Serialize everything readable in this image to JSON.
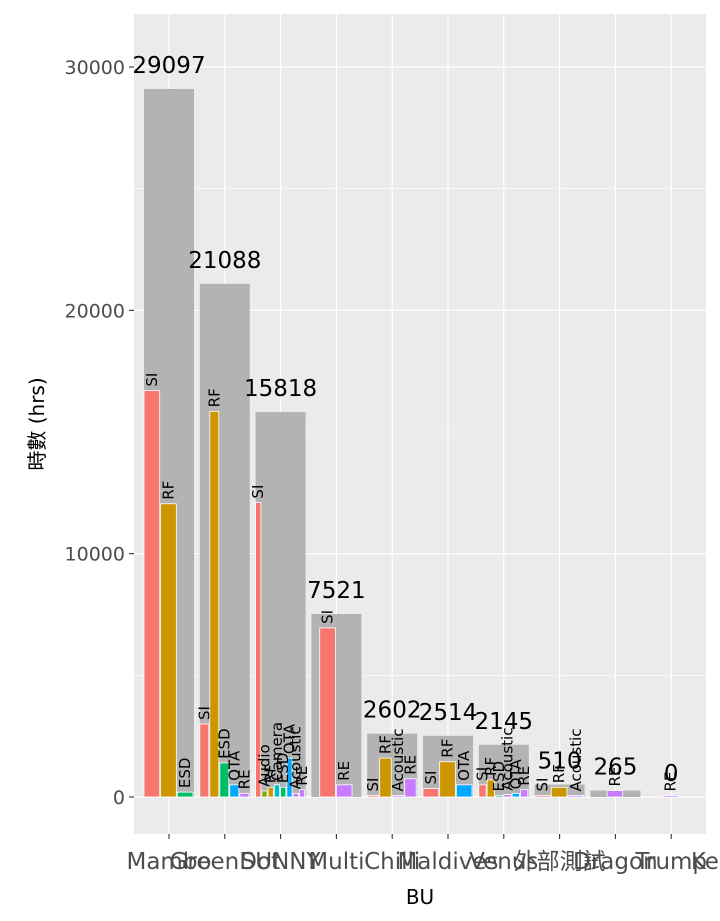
{
  "chart_data": {
    "type": "bar",
    "xlabel": "BU",
    "ylabel": "時數 (hrs)",
    "ylim": [
      -1500,
      32000
    ],
    "yticks": [
      0,
      10000,
      20000,
      30000
    ],
    "grid": true,
    "legend": "none",
    "colors": {
      "total": "#b3b3b3",
      "panel": "#ebebeb",
      "gridline": "#ffffff",
      "SI": "#f8766d",
      "RF": "#cd9600",
      "ESD": "#00be67",
      "OTA": "#00a9ff",
      "RE": "#c77cff",
      "Audio": "#7cae00",
      "Acoustic": "#c77cff",
      "Camera": "#00bfc4"
    },
    "categories": [
      "Mambo",
      "GreenDot",
      "SUNNY",
      "Multi",
      "Chilli",
      "Maldives",
      "Venus",
      "外部測試",
      "Dragon",
      "Trump",
      "Kernel"
    ],
    "totals": [
      29097,
      21088,
      15818,
      7521,
      2602,
      2514,
      2145,
      510,
      265,
      0,
      0
    ],
    "total_labels": [
      "29097",
      "21088",
      "15818",
      "7521",
      "2602",
      "2514",
      "2145",
      "510",
      "265",
      "0",
      ""
    ],
    "breakdown": [
      [
        {
          "label": "SI",
          "value": 16700
        },
        {
          "label": "RF",
          "value": 12050
        },
        {
          "label": "ESD",
          "value": 200
        }
      ],
      [
        {
          "label": "SI",
          "value": 3000
        },
        {
          "label": "RF",
          "value": 15850
        },
        {
          "label": "ESD",
          "value": 1400
        },
        {
          "label": "OTA",
          "value": 500
        },
        {
          "label": "RE",
          "value": 150
        }
      ],
      [
        {
          "label": "SI",
          "value": 12100
        },
        {
          "label": "Audio",
          "value": 250
        },
        {
          "label": "RF",
          "value": 400
        },
        {
          "label": "Camera",
          "value": 500
        },
        {
          "label": "ESD",
          "value": 400
        },
        {
          "label": "OTA",
          "value": 1600
        },
        {
          "label": "Acoustic",
          "value": 150
        },
        {
          "label": "RE",
          "value": 300
        }
      ],
      [
        {
          "label": "SI",
          "value": 6950
        },
        {
          "label": "RE",
          "value": 500
        }
      ],
      [
        {
          "label": "SI",
          "value": 30
        },
        {
          "label": "RF",
          "value": 1600
        },
        {
          "label": "Acoustic",
          "value": 20
        },
        {
          "label": "RE",
          "value": 750
        }
      ],
      [
        {
          "label": "SI",
          "value": 350
        },
        {
          "label": "RF",
          "value": 1450
        },
        {
          "label": "OTA",
          "value": 500
        }
      ],
      [
        {
          "label": "SI",
          "value": 500
        },
        {
          "label": "RF",
          "value": 700
        },
        {
          "label": "ESD",
          "value": 50
        },
        {
          "label": "Acoustic",
          "value": 100
        },
        {
          "label": "OTA",
          "value": 150
        },
        {
          "label": "RE",
          "value": 300
        }
      ],
      [
        {
          "label": "SI",
          "value": 30
        },
        {
          "label": "RF",
          "value": 400
        },
        {
          "label": "Acoustic",
          "value": 30
        }
      ],
      [
        {
          "label": "RE",
          "value": 265
        }
      ],
      [
        {
          "label": "RE",
          "value": 0
        }
      ],
      []
    ]
  }
}
